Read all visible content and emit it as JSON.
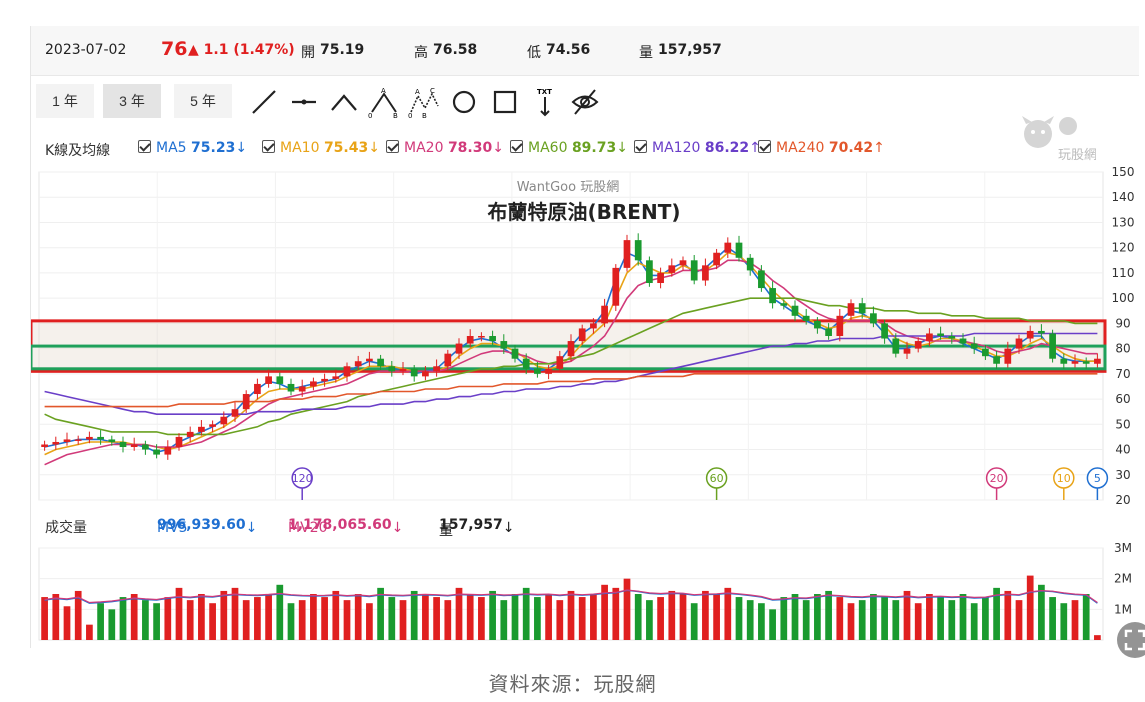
{
  "quote": {
    "date": "2023-07-02",
    "price": "76",
    "change": "▲ 1.1 (1.47%)",
    "open_label": "開",
    "open": "75.19",
    "high_label": "高",
    "high": "76.58",
    "low_label": "低",
    "low": "74.56",
    "vol_label": "量",
    "volume": "157,957"
  },
  "toolbar": {
    "ranges": [
      "1 年",
      "3 年",
      "5 年"
    ],
    "active_range": "3 年",
    "tools": [
      "line-tool-icon",
      "horizontal-line-icon",
      "angle-tool-icon",
      "abc-pattern-icon",
      "abcd-pattern-icon",
      "circle-tool-icon",
      "rectangle-tool-icon",
      "text-tool-icon",
      "hide-drawings-icon"
    ],
    "abc_letters": [
      "A",
      "0",
      "B",
      "C"
    ],
    "text_tool": "TXT"
  },
  "ma_bar": {
    "title": "K線及均線",
    "items": [
      {
        "name": "MA5",
        "value": "75.23",
        "arrow": "↓",
        "color": "#1f6fd1"
      },
      {
        "name": "MA10",
        "value": "75.43",
        "arrow": "↓",
        "color": "#e8a317"
      },
      {
        "name": "MA20",
        "value": "78.30",
        "arrow": "↓",
        "color": "#d13a7a"
      },
      {
        "name": "MA60",
        "value": "89.73",
        "arrow": "↓",
        "color": "#6aa121"
      },
      {
        "name": "MA120",
        "value": "86.22",
        "arrow": "↑",
        "color": "#6a3fc8"
      },
      {
        "name": "MA240",
        "value": "70.42",
        "arrow": "↑",
        "color": "#e2572b"
      }
    ]
  },
  "logo": {
    "text": "玩股網"
  },
  "chart_data": [
    {
      "type": "candlestick",
      "title": "布蘭特原油(BRENT)",
      "watermark": "WantGoo 玩股網",
      "ylim": [
        20,
        150
      ],
      "yticks": [
        20,
        30,
        40,
        50,
        60,
        70,
        80,
        90,
        100,
        110,
        120,
        130,
        140,
        150
      ],
      "close_series": [
        42,
        43,
        44,
        44,
        45,
        44,
        43,
        41,
        42,
        40,
        38,
        41,
        45,
        47,
        49,
        50,
        53,
        56,
        62,
        66,
        69,
        66,
        63,
        65,
        67,
        68,
        69,
        73,
        75,
        76,
        73,
        71,
        72,
        69,
        71,
        73,
        78,
        82,
        85,
        85,
        83,
        80,
        76,
        72,
        70,
        72,
        77,
        83,
        88,
        90,
        97,
        112,
        123,
        115,
        106,
        110,
        113,
        115,
        107,
        113,
        118,
        122,
        116,
        111,
        104,
        98,
        97,
        93,
        91,
        88,
        85,
        93,
        98,
        94,
        90,
        84,
        78,
        80,
        83,
        86,
        85,
        84,
        82,
        80,
        77,
        74,
        80,
        84,
        87,
        86,
        76,
        74,
        75,
        74,
        76
      ],
      "overlays": [
        {
          "name": "MA5",
          "color": "#1f6fd1",
          "values": [
            41,
            42,
            43,
            44,
            44,
            44,
            43,
            42,
            42,
            41,
            39,
            40,
            43,
            45,
            47,
            49,
            52,
            55,
            60,
            64,
            67,
            66,
            64,
            65,
            66,
            67,
            68,
            71,
            73,
            75,
            74,
            72,
            72,
            70,
            71,
            72,
            76,
            80,
            83,
            84,
            83,
            80,
            77,
            73,
            71,
            72,
            75,
            81,
            86,
            89,
            95,
            108,
            118,
            116,
            109,
            109,
            112,
            114,
            110,
            112,
            116,
            120,
            117,
            112,
            106,
            100,
            97,
            94,
            91,
            89,
            87,
            91,
            95,
            94,
            91,
            86,
            80,
            80,
            82,
            84,
            85,
            84,
            82,
            80,
            78,
            76,
            78,
            82,
            85,
            85,
            79,
            76,
            75,
            75,
            75
          ]
        },
        {
          "name": "MA10",
          "color": "#e8a317",
          "values": [
            38,
            40,
            41,
            42,
            43,
            43,
            43,
            43,
            42,
            42,
            41,
            40,
            41,
            43,
            45,
            47,
            49,
            52,
            56,
            60,
            63,
            64,
            64,
            64,
            65,
            66,
            67,
            69,
            71,
            73,
            73,
            73,
            72,
            71,
            71,
            71,
            73,
            77,
            80,
            82,
            82,
            81,
            79,
            76,
            73,
            72,
            73,
            77,
            82,
            86,
            90,
            100,
            110,
            114,
            112,
            110,
            110,
            113,
            111,
            111,
            114,
            118,
            117,
            113,
            108,
            103,
            99,
            95,
            92,
            90,
            88,
            89,
            92,
            93,
            92,
            89,
            84,
            82,
            81,
            82,
            84,
            84,
            83,
            81,
            79,
            77,
            77,
            79,
            82,
            84,
            81,
            78,
            76,
            75,
            75
          ]
        },
        {
          "name": "MA20",
          "color": "#d13a7a",
          "values": [
            34,
            36,
            38,
            39,
            40,
            41,
            42,
            42,
            42,
            42,
            41,
            41,
            41,
            42,
            43,
            45,
            47,
            49,
            52,
            55,
            58,
            60,
            61,
            62,
            63,
            64,
            65,
            66,
            68,
            70,
            71,
            71,
            71,
            71,
            71,
            71,
            72,
            74,
            76,
            78,
            79,
            79,
            78,
            77,
            75,
            74,
            74,
            75,
            78,
            81,
            85,
            92,
            100,
            105,
            107,
            108,
            109,
            111,
            111,
            111,
            112,
            115,
            115,
            114,
            111,
            107,
            104,
            100,
            97,
            94,
            92,
            91,
            91,
            91,
            91,
            90,
            87,
            85,
            84,
            83,
            83,
            83,
            83,
            82,
            81,
            79,
            78,
            79,
            80,
            82,
            81,
            80,
            79,
            78,
            78
          ]
        },
        {
          "name": "MA60",
          "color": "#6aa121",
          "values": [
            54,
            52,
            51,
            50,
            49,
            48,
            47,
            47,
            47,
            47,
            47,
            46,
            46,
            46,
            46,
            46,
            46,
            47,
            48,
            49,
            51,
            52,
            54,
            55,
            56,
            57,
            58,
            59,
            61,
            62,
            63,
            64,
            65,
            66,
            67,
            68,
            69,
            70,
            71,
            72,
            72,
            73,
            73,
            74,
            74,
            74,
            75,
            76,
            77,
            78,
            80,
            82,
            84,
            86,
            88,
            90,
            92,
            94,
            95,
            96,
            97,
            98,
            99,
            100,
            100,
            100,
            100,
            100,
            99,
            98,
            97,
            97,
            96,
            96,
            96,
            95,
            95,
            95,
            94,
            94,
            94,
            93,
            93,
            93,
            92,
            92,
            92,
            92,
            91,
            91,
            91,
            91,
            90,
            90,
            90
          ]
        },
        {
          "name": "MA120",
          "color": "#6a3fc8",
          "values": [
            63,
            62,
            61,
            60,
            59,
            58,
            57,
            56,
            55,
            55,
            54,
            54,
            54,
            54,
            54,
            54,
            54,
            54,
            54,
            55,
            55,
            55,
            55,
            56,
            56,
            56,
            56,
            57,
            57,
            57,
            58,
            58,
            58,
            59,
            59,
            60,
            60,
            61,
            61,
            62,
            62,
            63,
            63,
            64,
            64,
            64,
            65,
            65,
            66,
            66,
            67,
            67,
            68,
            69,
            70,
            71,
            72,
            73,
            74,
            75,
            76,
            77,
            78,
            79,
            80,
            81,
            81,
            82,
            82,
            83,
            83,
            84,
            84,
            84,
            84,
            85,
            85,
            85,
            85,
            85,
            85,
            85,
            85,
            86,
            86,
            86,
            86,
            86,
            86,
            86,
            86,
            86,
            86,
            86,
            86
          ]
        },
        {
          "name": "MA240",
          "color": "#e2572b",
          "values": [
            57,
            57,
            57,
            57,
            57,
            57,
            57,
            57,
            57,
            57,
            57,
            57,
            58,
            58,
            58,
            58,
            58,
            59,
            59,
            59,
            59,
            60,
            60,
            60,
            61,
            61,
            61,
            62,
            62,
            62,
            63,
            63,
            63,
            63,
            64,
            64,
            64,
            65,
            65,
            65,
            65,
            66,
            66,
            66,
            66,
            67,
            67,
            67,
            67,
            68,
            68,
            68,
            68,
            69,
            69,
            69,
            69,
            69,
            70,
            70,
            70,
            70,
            70,
            70,
            70,
            70,
            70,
            70,
            70,
            70,
            70,
            70,
            70,
            70,
            70,
            70,
            70,
            70,
            70,
            70,
            70,
            70,
            70,
            70,
            70,
            70,
            70,
            70,
            70,
            70,
            70,
            70,
            70,
            70,
            70
          ]
        }
      ],
      "zones": [
        {
          "name": "red-zone",
          "from": 71,
          "to": 91,
          "color": "#e02020"
        },
        {
          "name": "green-zone",
          "from": 72,
          "to": 81,
          "color": "#1fa05a"
        }
      ],
      "ma_markers": [
        {
          "label": "120",
          "color": "#6a3fc8",
          "index": 23
        },
        {
          "label": "60",
          "color": "#6aa121",
          "index": 60
        },
        {
          "label": "20",
          "color": "#d13a7a",
          "index": 85
        },
        {
          "label": "10",
          "color": "#e8a317",
          "index": 91
        },
        {
          "label": "5",
          "color": "#1f6fd1",
          "index": 94
        }
      ]
    },
    {
      "type": "bar",
      "title": "成交量",
      "ylim": [
        0,
        3000000
      ],
      "yticks": [
        "1M",
        "2M",
        "3M"
      ],
      "mv5": {
        "label": "MV5",
        "value": "996,939.60",
        "arrow": "↓",
        "color": "#1f6fd1"
      },
      "mv20": {
        "label": "MV20",
        "value": "1,178,065.60",
        "arrow": "↓",
        "color": "#d13a7a"
      },
      "vol": {
        "label": "量",
        "value": "157,957",
        "arrow": "↓"
      },
      "values": [
        1400000,
        1500000,
        1100000,
        1600000,
        500000,
        1200000,
        1000000,
        1400000,
        1500000,
        1300000,
        1200000,
        1400000,
        1700000,
        1300000,
        1500000,
        1200000,
        1600000,
        1700000,
        1300000,
        1400000,
        1500000,
        1800000,
        1200000,
        1300000,
        1500000,
        1400000,
        1600000,
        1300000,
        1500000,
        1200000,
        1700000,
        1400000,
        1300000,
        1600000,
        1500000,
        1400000,
        1300000,
        1700000,
        1500000,
        1400000,
        1600000,
        1300000,
        1500000,
        1700000,
        1400000,
        1500000,
        1300000,
        1600000,
        1400000,
        1500000,
        1800000,
        1700000,
        2000000,
        1500000,
        1300000,
        1400000,
        1600000,
        1500000,
        1200000,
        1600000,
        1500000,
        1700000,
        1400000,
        1300000,
        1200000,
        1000000,
        1400000,
        1500000,
        1300000,
        1500000,
        1600000,
        1400000,
        1200000,
        1300000,
        1500000,
        1400000,
        1300000,
        1600000,
        1200000,
        1500000,
        1400000,
        1300000,
        1500000,
        1200000,
        1400000,
        1700000,
        1600000,
        1300000,
        2100000,
        1800000,
        1400000,
        1200000,
        1300000,
        1500000,
        157957
      ],
      "mv_series": [
        1300000,
        1350000,
        1320000,
        1380000,
        1200000,
        1220000,
        1250000,
        1300000,
        1350000,
        1320000,
        1300000,
        1360000,
        1400000,
        1380000,
        1420000,
        1400000,
        1450000,
        1480000,
        1460000,
        1450000,
        1470000,
        1500000,
        1460000,
        1440000,
        1430000,
        1440000,
        1460000,
        1430000,
        1450000,
        1420000,
        1470000,
        1450000,
        1440000,
        1460000,
        1470000,
        1460000,
        1440000,
        1480000,
        1470000,
        1460000,
        1480000,
        1450000,
        1460000,
        1490000,
        1470000,
        1480000,
        1450000,
        1480000,
        1460000,
        1480000,
        1520000,
        1540000,
        1620000,
        1580000,
        1520000,
        1500000,
        1520000,
        1510000,
        1460000,
        1480000,
        1490000,
        1520000,
        1490000,
        1450000,
        1400000,
        1300000,
        1320000,
        1360000,
        1350000,
        1400000,
        1450000,
        1430000,
        1400000,
        1390000,
        1420000,
        1410000,
        1390000,
        1420000,
        1380000,
        1400000,
        1410000,
        1390000,
        1400000,
        1370000,
        1380000,
        1450000,
        1480000,
        1460000,
        1560000,
        1600000,
        1580000,
        1520000,
        1480000,
        1460000,
        1200000
      ]
    }
  ],
  "source": "資料來源：玩股網"
}
